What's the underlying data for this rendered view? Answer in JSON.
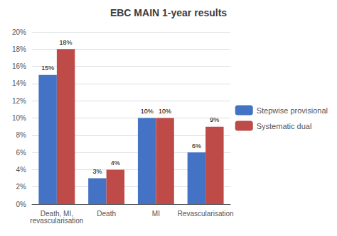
{
  "chart_data": {
    "type": "bar",
    "title": "EBC MAIN 1-year results",
    "categories": [
      "Death, MI,\nrevascularisation",
      "Death",
      "MI",
      "Revascularisation"
    ],
    "series": [
      {
        "name": "Stepwise provisional",
        "color": "#4472C4",
        "values": [
          15,
          3,
          10,
          6
        ],
        "value_labels": [
          "15%",
          "3%",
          "10%",
          "6%"
        ]
      },
      {
        "name": "Systematic dual",
        "color": "#BE4B48",
        "values": [
          18,
          4,
          10,
          9
        ],
        "value_labels": [
          "18%",
          "4%",
          "10%",
          "9%"
        ]
      }
    ],
    "ylim": [
      0,
      20
    ],
    "yticks": [
      {
        "value": 0,
        "label": "0%"
      },
      {
        "value": 2,
        "label": "2%"
      },
      {
        "value": 4,
        "label": "4%"
      },
      {
        "value": 6,
        "label": "6%"
      },
      {
        "value": 8,
        "label": "8%"
      },
      {
        "value": 10,
        "label": "10%"
      },
      {
        "value": 12,
        "label": "12%"
      },
      {
        "value": 14,
        "label": "14%"
      },
      {
        "value": 16,
        "label": "16%"
      },
      {
        "value": 18,
        "label": "18%"
      },
      {
        "value": 20,
        "label": "20%"
      }
    ],
    "grid": true,
    "legend": "right",
    "data_labels": true
  }
}
